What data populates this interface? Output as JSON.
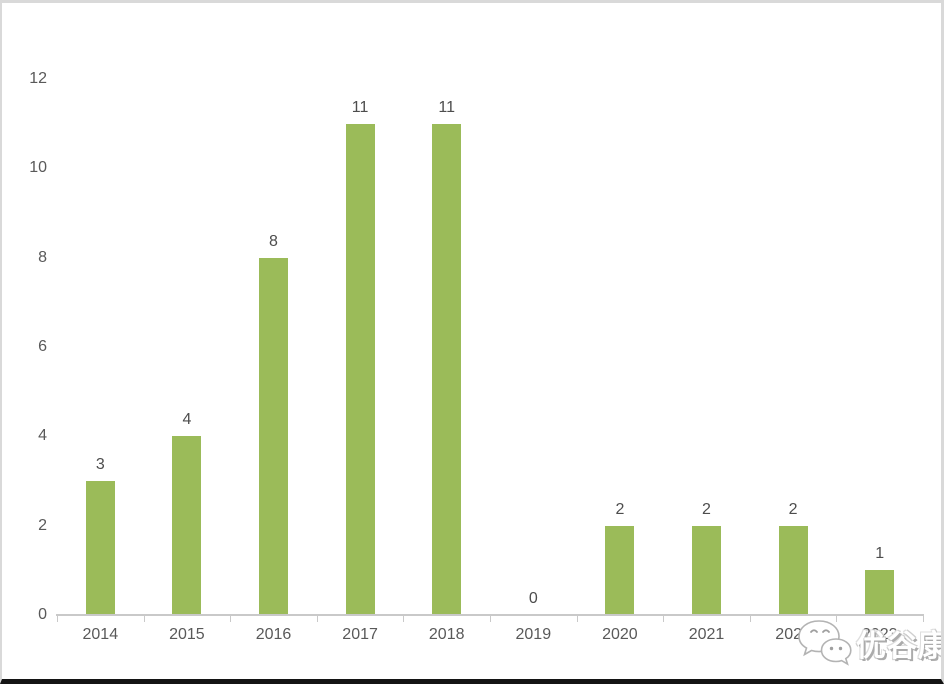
{
  "chart_data": {
    "type": "bar",
    "title": "",
    "xlabel": "",
    "ylabel": "",
    "categories": [
      "2014",
      "2015",
      "2016",
      "2017",
      "2018",
      "2019",
      "2020",
      "2021",
      "2022",
      "2023"
    ],
    "values": [
      3,
      4,
      8,
      11,
      11,
      0,
      2,
      2,
      2,
      1
    ],
    "ylim": [
      0,
      12
    ],
    "yticks": [
      0,
      2,
      4,
      6,
      8,
      10,
      12
    ],
    "grid": false,
    "legend": false,
    "data_labels_shown": true,
    "bar_color": "#9bbb59",
    "value_label_color": "#4d4d4d",
    "axis_label_color": "#595959",
    "axis_line_color": "#c9c9c9"
  },
  "watermark": {
    "text": "优谷康",
    "icon": "wechat-icon"
  }
}
